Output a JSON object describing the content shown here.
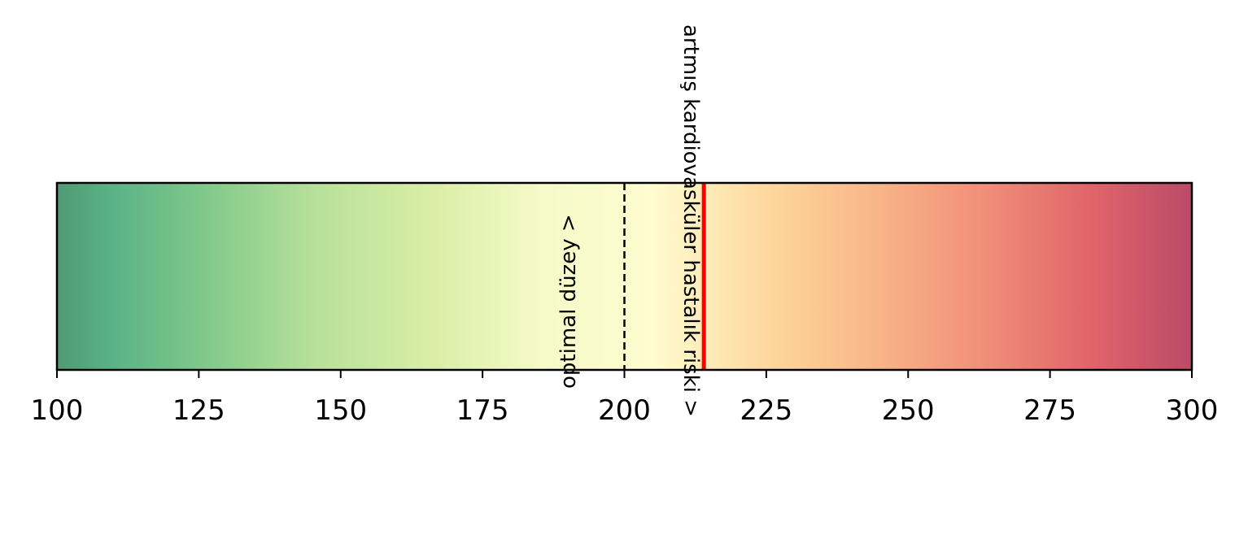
{
  "chart_data": {
    "type": "heatmap",
    "title": "",
    "xlabel": "",
    "ylabel": "",
    "xlim": [
      100,
      300
    ],
    "x_ticks": [
      100,
      125,
      150,
      175,
      200,
      225,
      250,
      275,
      300
    ],
    "x_tick_labels": [
      "100",
      "125",
      "150",
      "175",
      "200",
      "225",
      "250",
      "275",
      "300"
    ],
    "grid": false,
    "colormap": {
      "name": "RdYlGn_r",
      "stops": [
        {
          "value": 100,
          "color": "#4f9a74"
        },
        {
          "value": 110,
          "color": "#5bb386"
        },
        {
          "value": 125,
          "color": "#7ec78a"
        },
        {
          "value": 145,
          "color": "#b6e09a"
        },
        {
          "value": 165,
          "color": "#d8eda5"
        },
        {
          "value": 185,
          "color": "#f5fac8"
        },
        {
          "value": 205,
          "color": "#fffcd0"
        },
        {
          "value": 225,
          "color": "#fed89e"
        },
        {
          "value": 245,
          "color": "#f8b487"
        },
        {
          "value": 262,
          "color": "#f2917a"
        },
        {
          "value": 282,
          "color": "#e0656a"
        },
        {
          "value": 300,
          "color": "#bc4a68"
        }
      ]
    },
    "reference_lines": [
      {
        "x": 200,
        "style": "dashed",
        "color": "#000000"
      },
      {
        "x": 214,
        "style": "solid",
        "color": "#ff0000"
      }
    ],
    "annotations": [
      {
        "text": "optimal düzey >",
        "x": 190
      },
      {
        "text": "artmış kardiovasküler hastalık riski >",
        "x": 213
      }
    ]
  }
}
